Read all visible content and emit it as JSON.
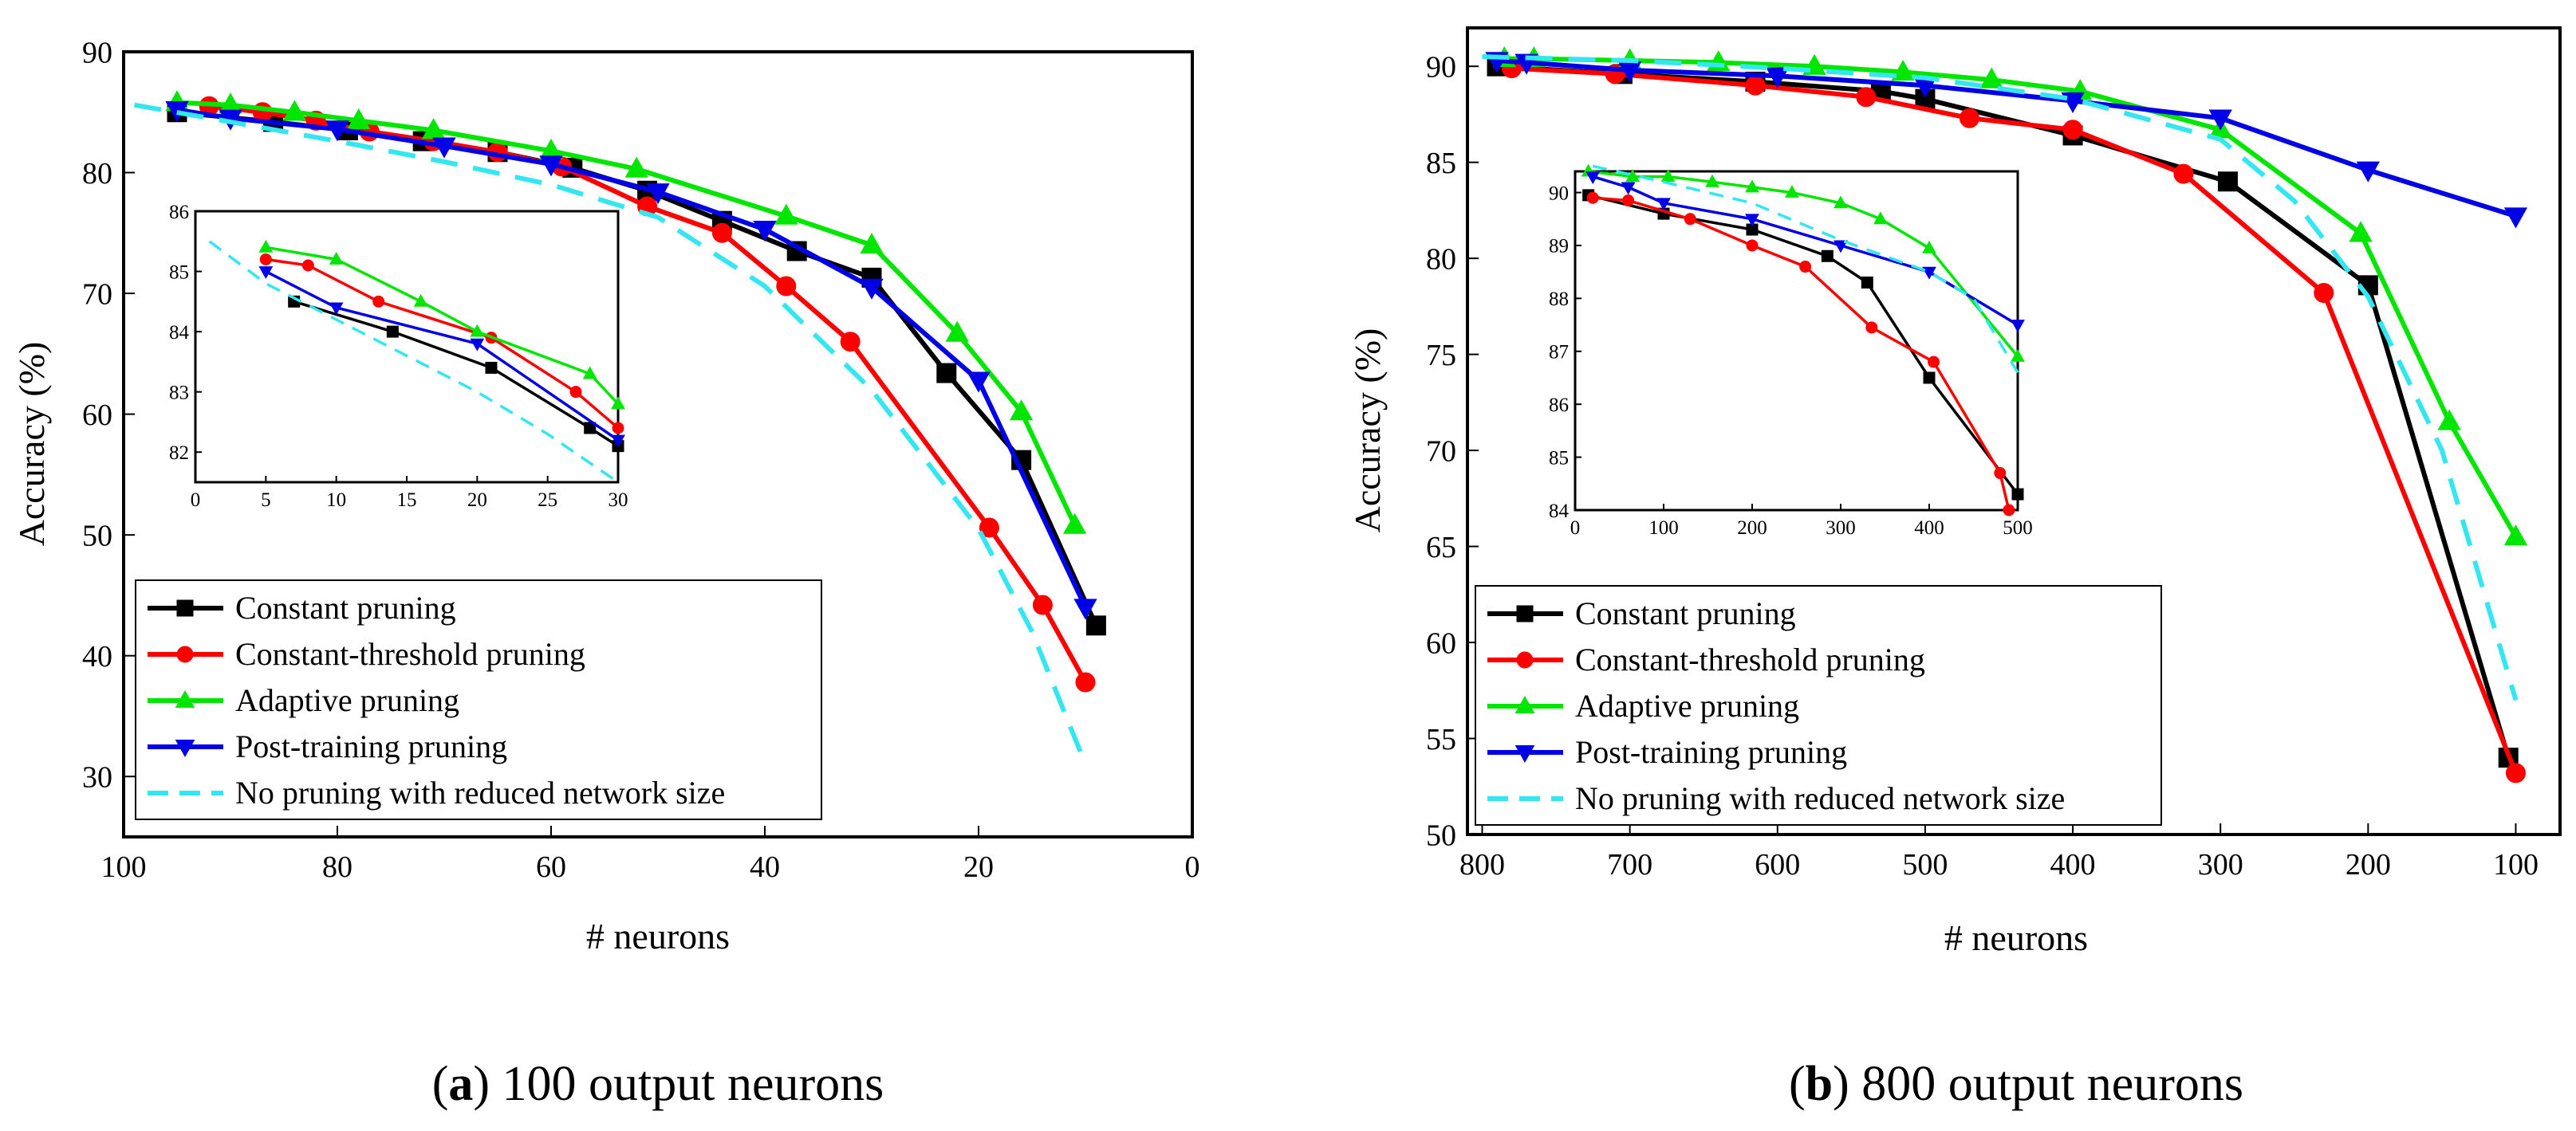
{
  "series_style": {
    "constant": {
      "color": "#000000",
      "marker": "square",
      "dash": false
    },
    "constant_threshold": {
      "color": "#ff0000",
      "marker": "circle",
      "dash": false
    },
    "adaptive": {
      "color": "#00e600",
      "marker": "triangle-up",
      "dash": false
    },
    "post_training": {
      "color": "#0000e6",
      "marker": "triangle-down",
      "dash": false
    },
    "no_pruning": {
      "color": "#33e6f0",
      "marker": "none",
      "dash": true
    }
  },
  "chart_data": [
    {
      "id": "a",
      "type": "line",
      "caption_label": "a",
      "caption_text": " 100 output neurons",
      "xlabel": "# neurons",
      "ylabel": "Accuracy (%)",
      "xlim": [
        100,
        0
      ],
      "ylim": [
        25,
        90
      ],
      "xticks": [
        100,
        80,
        60,
        40,
        20,
        0
      ],
      "yticks": [
        30,
        40,
        50,
        60,
        70,
        80,
        90
      ],
      "legend": "bottom-left",
      "series": [
        {
          "key": "constant",
          "name": "Constant pruning",
          "x": [
            95,
            86,
            79,
            72,
            65,
            58,
            51,
            44,
            37,
            30,
            23,
            16,
            9
          ],
          "y": [
            85.0,
            84.2,
            83.5,
            82.6,
            81.7,
            80.4,
            78.5,
            76.0,
            73.5,
            71.3,
            63.4,
            56.2,
            42.5
          ]
        },
        {
          "key": "constant_threshold",
          "name": "Constant-threshold pruning",
          "x": [
            92,
            87,
            82,
            77,
            71,
            65,
            59,
            51,
            44,
            38,
            32,
            19,
            14,
            10
          ],
          "y": [
            85.5,
            85.0,
            84.3,
            83.4,
            82.6,
            81.7,
            80.5,
            77.2,
            75.0,
            70.6,
            66.0,
            50.6,
            44.2,
            37.8
          ]
        },
        {
          "key": "adaptive",
          "name": "Adaptive pruning",
          "x": [
            95,
            90,
            84,
            78,
            71,
            60,
            52,
            38,
            30,
            22,
            16,
            11
          ],
          "y": [
            85.8,
            85.6,
            85.0,
            84.3,
            83.5,
            81.8,
            80.3,
            76.4,
            74.0,
            66.7,
            60.2,
            50.8
          ]
        },
        {
          "key": "post_training",
          "name": "Post-training pruning",
          "x": [
            95,
            90,
            80,
            70,
            60,
            50,
            40,
            30,
            20,
            10
          ],
          "y": [
            85.2,
            84.5,
            83.6,
            82.2,
            80.7,
            78.4,
            75.3,
            70.5,
            62.8,
            44.0
          ]
        },
        {
          "key": "no_pruning",
          "name": "No pruning with reduced network size",
          "x": [
            99,
            90,
            80,
            70,
            60,
            50,
            40,
            30,
            20,
            15,
            10
          ],
          "y": [
            85.6,
            84.2,
            82.6,
            80.9,
            79.0,
            76.3,
            70.6,
            62.0,
            50.5,
            42.0,
            31.0
          ]
        }
      ],
      "inset": {
        "xlim": [
          0,
          30
        ],
        "ylim": [
          81.5,
          86
        ],
        "xticks": [
          0,
          5,
          10,
          15,
          20,
          25,
          30
        ],
        "yticks": [
          82,
          83,
          84,
          85,
          86
        ],
        "series": [
          {
            "key": "constant",
            "x": [
              7,
              14,
              21,
              28,
              30
            ],
            "y": [
              84.5,
              84.0,
              83.4,
              82.4,
              82.1
            ]
          },
          {
            "key": "constant_threshold",
            "x": [
              5,
              8,
              13,
              21,
              27,
              30
            ],
            "y": [
              85.2,
              85.1,
              84.5,
              83.9,
              83.0,
              82.4
            ]
          },
          {
            "key": "adaptive",
            "x": [
              5,
              10,
              16,
              20,
              28,
              30
            ],
            "y": [
              85.4,
              85.2,
              84.5,
              84.0,
              83.3,
              82.8
            ]
          },
          {
            "key": "post_training",
            "x": [
              5,
              10,
              20,
              30
            ],
            "y": [
              85.0,
              84.4,
              83.8,
              82.2
            ]
          },
          {
            "key": "no_pruning",
            "x": [
              1,
              5,
              10,
              15,
              20,
              25,
              30
            ],
            "y": [
              85.5,
              84.8,
              84.2,
              83.6,
              83.0,
              82.3,
              81.5
            ]
          }
        ]
      }
    },
    {
      "id": "b",
      "type": "line",
      "caption_label": "b",
      "caption_text": " 800 output neurons",
      "xlabel": "# neurons",
      "ylabel": "Accuracy (%)",
      "xlim": [
        810,
        70
      ],
      "ylim": [
        50,
        92
      ],
      "xticks": [
        800,
        700,
        600,
        500,
        400,
        300,
        200,
        100
      ],
      "yticks": [
        50,
        55,
        60,
        65,
        70,
        75,
        80,
        85,
        90
      ],
      "legend": "bottom-left",
      "series": [
        {
          "key": "constant",
          "name": "Constant pruning",
          "x": [
            790,
            705,
            615,
            530,
            500,
            400,
            295,
            200,
            105
          ],
          "y": [
            90.0,
            89.6,
            89.2,
            88.7,
            88.3,
            86.4,
            84.0,
            78.6,
            54.0
          ]
        },
        {
          "key": "constant_threshold",
          "name": "Constant-threshold pruning",
          "x": [
            780,
            710,
            615,
            540,
            470,
            400,
            325,
            230,
            100
          ],
          "y": [
            89.9,
            89.6,
            89.0,
            88.4,
            87.3,
            86.7,
            84.4,
            78.2,
            53.2
          ]
        },
        {
          "key": "adaptive",
          "name": "Adaptive pruning",
          "x": [
            785,
            765,
            700,
            640,
            575,
            515,
            455,
            395,
            300,
            205,
            145,
            100
          ],
          "y": [
            90.4,
            90.4,
            90.3,
            90.2,
            90.0,
            89.7,
            89.3,
            88.7,
            86.7,
            81.3,
            71.5,
            65.5
          ]
        },
        {
          "key": "post_training",
          "name": "Post-training pruning",
          "x": [
            790,
            770,
            700,
            600,
            500,
            400,
            300,
            200,
            100
          ],
          "y": [
            90.3,
            90.2,
            89.8,
            89.5,
            89.0,
            88.2,
            87.3,
            84.6,
            82.2
          ]
        },
        {
          "key": "no_pruning",
          "name": "No pruning with reduced network size",
          "x": [
            800,
            700,
            600,
            500,
            400,
            300,
            250,
            200,
            150,
            100
          ],
          "y": [
            90.5,
            90.3,
            89.9,
            89.4,
            88.3,
            86.2,
            83.0,
            78.0,
            70.0,
            57.0
          ]
        }
      ],
      "inset": {
        "xlim": [
          0,
          500
        ],
        "ylim": [
          84,
          90.4
        ],
        "xticks": [
          0,
          100,
          200,
          300,
          400,
          500
        ],
        "yticks": [
          84,
          85,
          86,
          87,
          88,
          89,
          90
        ],
        "series": [
          {
            "key": "constant",
            "x": [
              15,
              100,
              200,
              285,
              330,
              400,
              500
            ],
            "y": [
              89.95,
              89.6,
              89.3,
              88.8,
              88.3,
              86.5,
              84.3
            ]
          },
          {
            "key": "constant_threshold",
            "x": [
              20,
              60,
              130,
              200,
              260,
              335,
              405,
              480,
              490
            ],
            "y": [
              89.9,
              89.85,
              89.5,
              89.0,
              88.6,
              87.45,
              86.8,
              84.7,
              84.0
            ]
          },
          {
            "key": "adaptive",
            "x": [
              15,
              65,
              105,
              155,
              200,
              245,
              300,
              345,
              400,
              500
            ],
            "y": [
              90.4,
              90.3,
              90.3,
              90.2,
              90.1,
              90.0,
              89.8,
              89.5,
              88.95,
              86.9
            ]
          },
          {
            "key": "post_training",
            "x": [
              20,
              60,
              100,
              200,
              300,
              400,
              500
            ],
            "y": [
              90.3,
              90.1,
              89.8,
              89.5,
              89.0,
              88.5,
              87.5
            ]
          },
          {
            "key": "no_pruning",
            "x": [
              20,
              100,
              200,
              300,
              400,
              450,
              500
            ],
            "y": [
              90.5,
              90.2,
              89.8,
              89.1,
              88.5,
              88.0,
              86.6
            ]
          }
        ]
      }
    }
  ]
}
